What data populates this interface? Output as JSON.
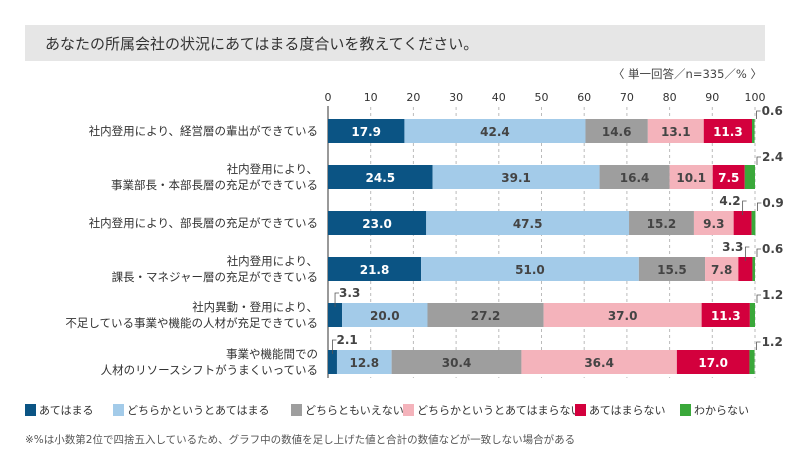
{
  "title": "あなたの所属会社の状況にあてはまる度合いを教えてください。",
  "note": "〈 単一回答／n=335／% 〉",
  "footnote": "※%は小数第2位で四捨五入しているため、グラフ中の数値を足し上げた値と合計の数値などが一致しない場合がある",
  "chart_data": {
    "type": "bar",
    "orientation": "horizontal",
    "stacked": true,
    "xlim": [
      0,
      100
    ],
    "xticks": [
      0,
      10,
      20,
      30,
      40,
      50,
      60,
      70,
      80,
      90,
      100
    ],
    "grid": true,
    "legend_placement": "bottom",
    "categories": [
      [
        "社内登用により、経営層の輩出ができている"
      ],
      [
        "社内登用により、",
        "事業部長・本部長層の充足ができている"
      ],
      [
        "社内登用により、部長層の充足ができている"
      ],
      [
        "社内登用により、",
        "課長・マネジャー層の充足ができている"
      ],
      [
        "社内異動・登用により、",
        "不足している事業や機能の人材が充足できている"
      ],
      [
        "事業や機能間での",
        "人材のリソースシフトがうまくいっている"
      ]
    ],
    "series": [
      {
        "name": "あてはまる",
        "color": "#0b5484",
        "values": [
          17.9,
          24.5,
          23.0,
          21.8,
          3.3,
          2.1
        ]
      },
      {
        "name": "どちらかというとあてはまる",
        "color": "#a3cbe9",
        "values": [
          42.4,
          39.1,
          47.5,
          51.0,
          20.0,
          12.8
        ]
      },
      {
        "name": "どちらともいえない",
        "color": "#9e9e9e",
        "values": [
          14.6,
          16.4,
          15.2,
          15.5,
          27.2,
          30.4
        ]
      },
      {
        "name": "どちらかというとあてはまらない",
        "color": "#f4b3bb",
        "values": [
          13.1,
          10.1,
          9.3,
          7.8,
          37.0,
          36.4
        ]
      },
      {
        "name": "あてはまらない",
        "color": "#d3003d",
        "values": [
          11.3,
          7.5,
          4.2,
          3.3,
          11.3,
          17.0
        ]
      },
      {
        "name": "わからない",
        "color": "#3aa83a",
        "values": [
          0.6,
          2.4,
          0.9,
          0.6,
          1.2,
          1.2
        ]
      }
    ]
  }
}
